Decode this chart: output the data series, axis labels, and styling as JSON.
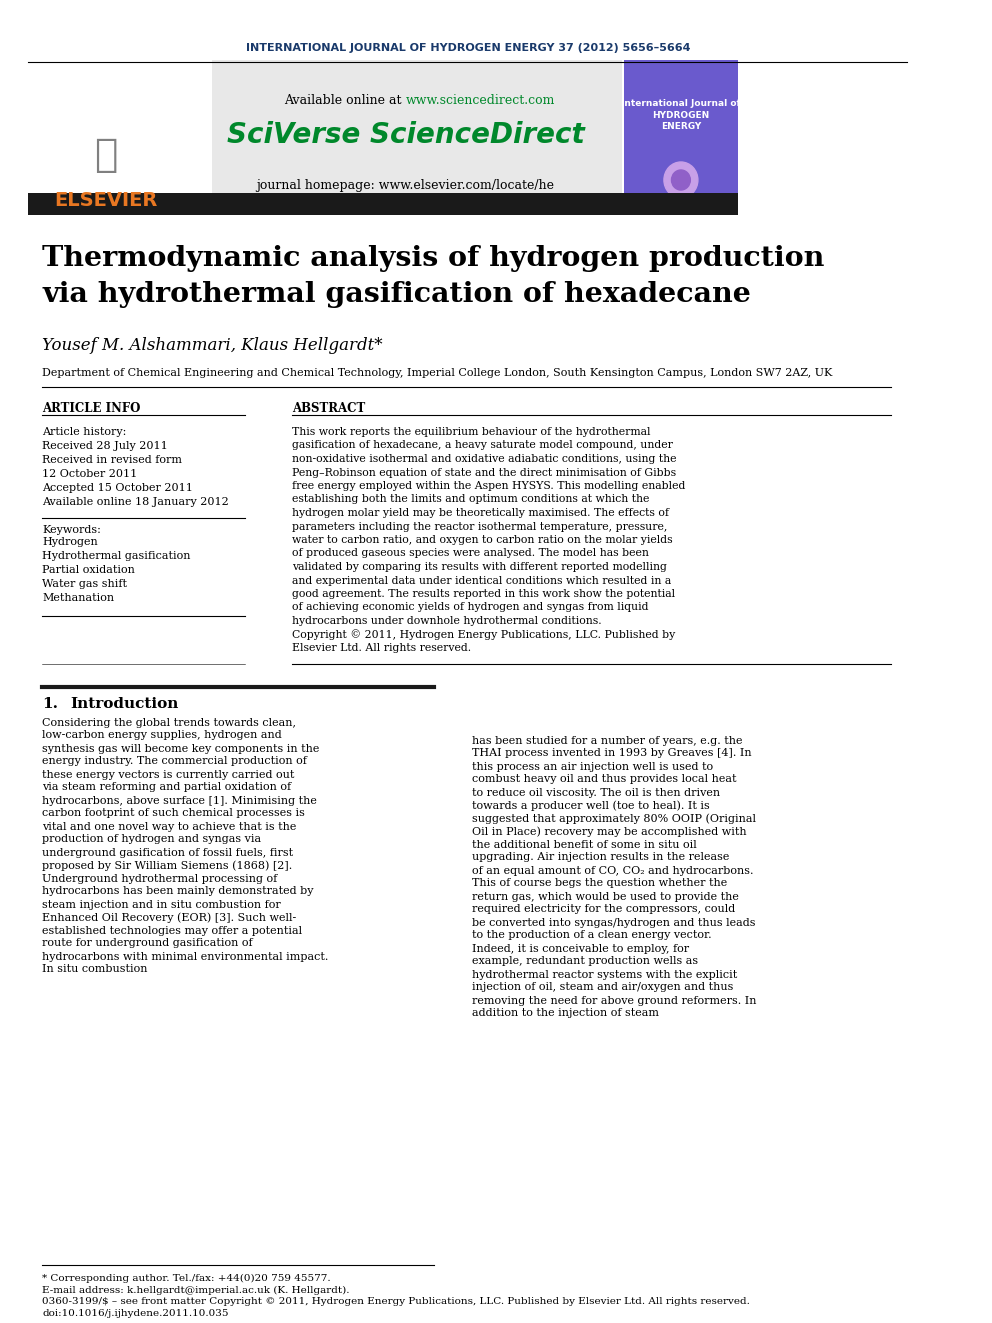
{
  "journal_header": "INTERNATIONAL JOURNAL OF HYDROGEN ENERGY 37 (2012) 5656–5664",
  "journal_header_color": "#1a3a6b",
  "available_online": "Available online at ",
  "sciencedirect_url": "www.sciencedirect.com",
  "sciencedirect_brand": "SciVerse ScienceDirect",
  "journal_homepage": "journal homepage: www.elsevier.com/locate/he",
  "title_line1": "Thermodynamic analysis of hydrogen production",
  "title_line2": "via hydrothermal gasification of hexadecane",
  "authors": "Yousef M. Alshammari, Klaus Hellgardt*",
  "affiliation": "Department of Chemical Engineering and Chemical Technology, Imperial College London, South Kensington Campus, London SW7 2AZ, UK",
  "article_info_header": "ARTICLE INFO",
  "abstract_header": "ABSTRACT",
  "article_history_label": "Article history:",
  "received1": "Received 28 July 2011",
  "received_revised_label": "Received in revised form",
  "received2": "12 October 2011",
  "accepted": "Accepted 15 October 2011",
  "available_online_date": "Available online 18 January 2012",
  "keywords_label": "Keywords:",
  "keywords": [
    "Hydrogen",
    "Hydrothermal gasification",
    "Partial oxidation",
    "Water gas shift",
    "Methanation"
  ],
  "abstract_text": "This work reports the equilibrium behaviour of the hydrothermal gasification of hexadecane, a heavy saturate model compound, under non-oxidative isothermal and oxidative adiabatic conditions, using the Peng–Robinson equation of state and the direct minimisation of Gibbs free energy employed within the Aspen HYSYS. This modelling enabled establishing both the limits and optimum conditions at which the hydrogen molar yield may be theoretically maximised. The effects of parameters including the reactor isothermal temperature, pressure, water to carbon ratio, and oxygen to carbon ratio on the molar yields of produced gaseous species were analysed. The model has been validated by comparing its results with different reported modelling and experimental data under identical conditions which resulted in a good agreement. The results reported in this work show the potential of achieving economic yields of hydrogen and syngas from liquid hydrocarbons under downhole hydrothermal conditions.",
  "copyright_text": "Copyright © 2011, Hydrogen Energy Publications, LLC. Published by Elsevier Ltd. All rights reserved.",
  "section1_number": "1.",
  "section1_title": "Introduction",
  "section1_col1": "Considering the global trends towards clean, low-carbon energy supplies, hydrogen and synthesis gas will become key components in the energy industry. The commercial production of these energy vectors is currently carried out via steam reforming and partial oxidation of hydrocarbons, above surface [1]. Minimising the carbon footprint of such chemical processes is vital and one novel way to achieve that is the production of hydrogen and syngas via underground gasification of fossil fuels, first proposed by Sir William Siemens (1868) [2]. Underground hydrothermal processing of hydrocarbons has been mainly demonstrated by steam injection and in situ combustion for Enhanced Oil Recovery (EOR) [3]. Such well-established technologies may offer a potential route for underground gasification of hydrocarbons with minimal environmental impact. In situ combustion",
  "section1_col2": "has been studied for a number of years, e.g. the THAI process invented in 1993 by Greaves [4]. In this process an air injection well is used to combust heavy oil and thus provides local heat to reduce oil viscosity. The oil is then driven towards a producer well (toe to heal). It is suggested that approximately 80% OOIP (Original Oil in Place) recovery may be accomplished with the additional benefit of some in situ oil upgrading. Air injection results in the release of an equal amount of CO, CO₂ and hydrocarbons. This of course begs the question whether the return gas, which would be used to provide the required electricity for the compressors, could be converted into syngas/hydrogen and thus leads to the production of a clean energy vector. Indeed, it is conceivable to employ, for example, redundant production wells as hydrothermal reactor systems with the explicit injection of oil, steam and air/oxygen and thus removing the need for above ground reformers. In addition to the injection of steam",
  "footnote_star": "* Corresponding author. Tel./fax: +44(0)20 759 45577.",
  "footnote_email": "E-mail address: k.hellgardt@imperial.ac.uk (K. Hellgardt).",
  "footnote_issn": "0360-3199/$ – see front matter Copyright © 2011, Hydrogen Energy Publications, LLC. Published by Elsevier Ltd. All rights reserved.",
  "footnote_doi": "doi:10.1016/j.ijhydene.2011.10.035",
  "elsevier_color": "#E87722",
  "green_color": "#00882B",
  "dark_blue": "#1a3a6b",
  "header_bg": "#e8e8e8",
  "black_bar_color": "#1a1a1a"
}
